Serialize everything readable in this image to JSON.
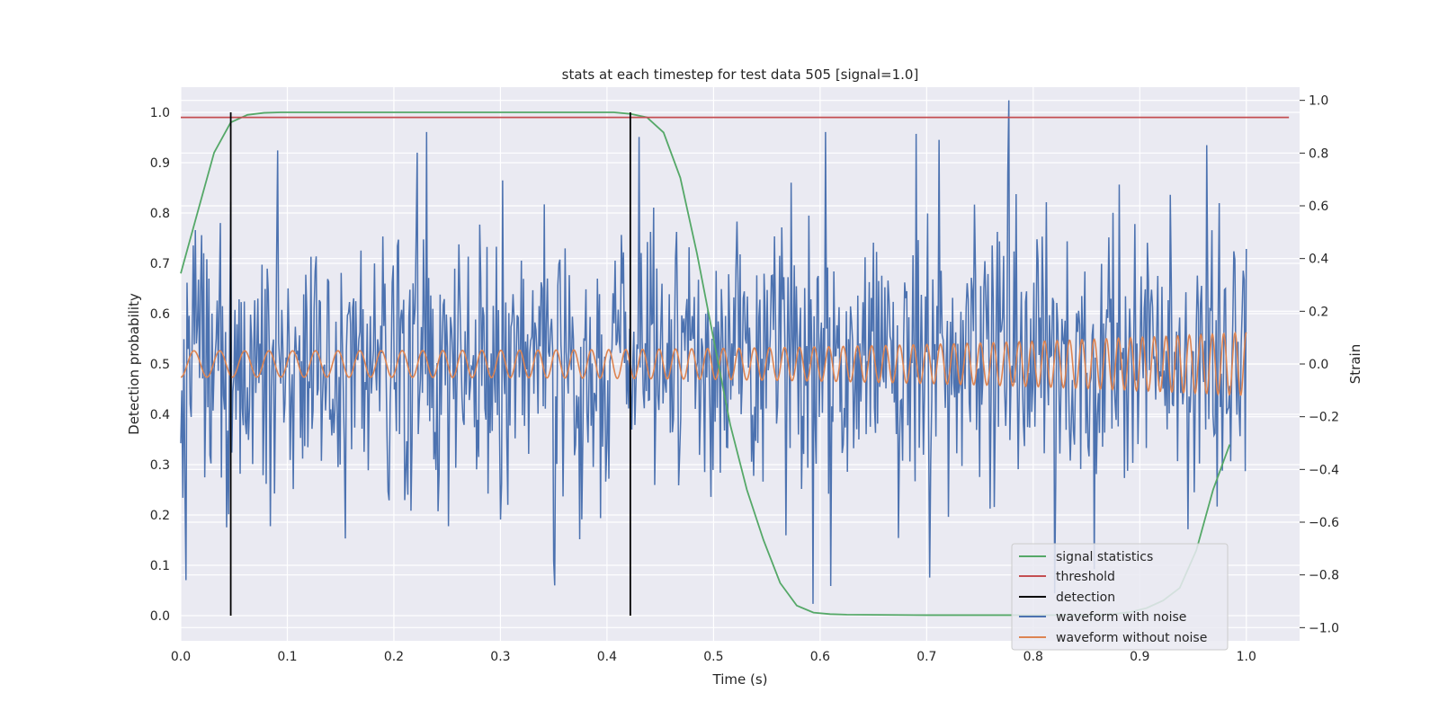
{
  "chart_data": {
    "type": "line",
    "title": "stats at each timestep for test data 505 [signal=1.0]",
    "xlabel": "Time (s)",
    "ylabel_left": "Detection probability",
    "ylabel_right": "Strain",
    "xlim": [
      0.0,
      1.05
    ],
    "ylim_left": [
      -0.05,
      1.05
    ],
    "ylim_right": [
      -1.05,
      1.05
    ],
    "x_ticks": [
      "0.0",
      "0.1",
      "0.2",
      "0.3",
      "0.4",
      "0.5",
      "0.6",
      "0.7",
      "0.8",
      "0.9",
      "1.0"
    ],
    "x_tick_values": [
      0.0,
      0.1,
      0.2,
      0.3,
      0.4,
      0.5,
      0.6,
      0.7,
      0.8,
      0.9,
      1.0
    ],
    "y_left_ticks": [
      "0.0",
      "0.1",
      "0.2",
      "0.3",
      "0.4",
      "0.5",
      "0.6",
      "0.7",
      "0.8",
      "0.9",
      "1.0"
    ],
    "y_left_tick_values": [
      0.0,
      0.1,
      0.2,
      0.3,
      0.4,
      0.5,
      0.6,
      0.7,
      0.8,
      0.9,
      1.0
    ],
    "y_right_ticks": [
      "−1.0",
      "−0.8",
      "−0.6",
      "−0.4",
      "−0.2",
      "0.0",
      "0.2",
      "0.4",
      "0.6",
      "0.8",
      "1.0"
    ],
    "y_right_tick_values": [
      -1.0,
      -0.8,
      -0.6,
      -0.4,
      -0.2,
      0.0,
      0.2,
      0.4,
      0.6,
      0.8,
      1.0
    ],
    "grid": true,
    "legend_position": "lower-right",
    "colors": {
      "background": "#eaeaf2",
      "grid": "#ffffff",
      "signal_statistics": "#55a868",
      "threshold": "#c44e52",
      "detection": "#000000",
      "waveform_with_noise": "#4c72b0",
      "waveform_without_noise": "#dd8452"
    },
    "series": [
      {
        "name": "signal statistics",
        "axis": "left",
        "x": [
          0.0,
          0.0156,
          0.0313,
          0.0469,
          0.0625,
          0.0781,
          0.0938,
          0.25,
          0.4063,
          0.4219,
          0.4375,
          0.4531,
          0.4688,
          0.4844,
          0.5,
          0.5156,
          0.5313,
          0.5469,
          0.5625,
          0.5781,
          0.5938,
          0.6094,
          0.625,
          0.7,
          0.8,
          0.8594,
          0.875,
          0.8906,
          0.9063,
          0.9219,
          0.9375,
          0.9531,
          0.9688,
          0.9844
        ],
        "y": [
          0.68,
          0.8,
          0.92,
          0.98,
          0.995,
          0.999,
          1.0,
          1.0,
          1.0,
          0.997,
          0.99,
          0.96,
          0.87,
          0.72,
          0.55,
          0.38,
          0.25,
          0.15,
          0.065,
          0.02,
          0.006,
          0.003,
          0.002,
          0.001,
          0.001,
          0.001,
          0.003,
          0.007,
          0.015,
          0.03,
          0.055,
          0.13,
          0.25,
          0.34
        ]
      },
      {
        "name": "threshold",
        "axis": "left",
        "x": [
          0.0,
          1.04
        ],
        "y": [
          0.99,
          0.99
        ]
      },
      {
        "name": "detection",
        "axis": "left",
        "segments": [
          {
            "x": 0.0469,
            "y0": 0.0,
            "y1": 1.0
          },
          {
            "x": 0.4219,
            "y0": 0.0,
            "y1": 1.0
          }
        ]
      },
      {
        "name": "waveform with noise",
        "axis": "right",
        "description_of_data": "noisy strain samples, range about -0.96 to 1.0",
        "samples": 1024,
        "x_range": [
          0.0,
          1.0
        ],
        "envelope": [
          -0.96,
          1.0
        ],
        "peak_points": [
          {
            "x": 0.005,
            "y": -0.82
          },
          {
            "x": 0.045,
            "y": -0.57
          },
          {
            "x": 0.091,
            "y": 0.81
          },
          {
            "x": 0.231,
            "y": 0.88
          },
          {
            "x": 0.351,
            "y": -0.84
          },
          {
            "x": 0.593,
            "y": -0.91
          },
          {
            "x": 0.605,
            "y": 0.88
          },
          {
            "x": 0.703,
            "y": -0.81
          },
          {
            "x": 0.712,
            "y": 0.85
          },
          {
            "x": 0.777,
            "y": 1.0
          },
          {
            "x": 0.82,
            "y": -0.87
          },
          {
            "x": 0.963,
            "y": 0.83
          }
        ],
        "seed": 505
      },
      {
        "name": "waveform without noise",
        "axis": "right",
        "function": "chirp",
        "x_range": [
          0.0,
          1.0
        ],
        "amplitude_start": 0.05,
        "amplitude_end": 0.12,
        "frequency_start_hz": 40,
        "frequency_end_hz": 95
      }
    ]
  }
}
